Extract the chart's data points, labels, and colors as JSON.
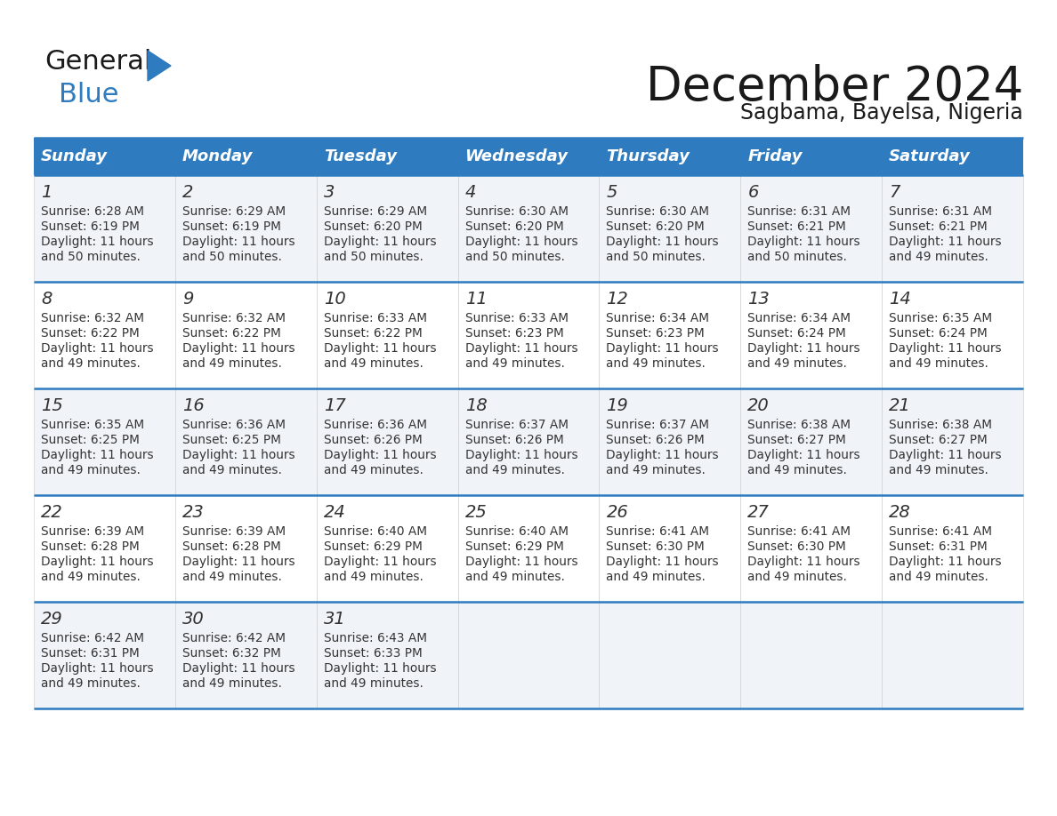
{
  "title": "December 2024",
  "subtitle": "Sagbama, Bayelsa, Nigeria",
  "header_bg": "#2E7BBF",
  "header_text_color": "#FFFFFF",
  "row_bg_odd": "#F0F4F8",
  "row_bg_even": "#FFFFFF",
  "border_color": "#2E7BBF",
  "text_color": "#333333",
  "days_of_week": [
    "Sunday",
    "Monday",
    "Tuesday",
    "Wednesday",
    "Thursday",
    "Friday",
    "Saturday"
  ],
  "weeks": [
    [
      {
        "day": 1,
        "sunrise": "6:28 AM",
        "sunset": "6:19 PM",
        "daylight": "11 hours and 50 minutes."
      },
      {
        "day": 2,
        "sunrise": "6:29 AM",
        "sunset": "6:19 PM",
        "daylight": "11 hours and 50 minutes."
      },
      {
        "day": 3,
        "sunrise": "6:29 AM",
        "sunset": "6:20 PM",
        "daylight": "11 hours and 50 minutes."
      },
      {
        "day": 4,
        "sunrise": "6:30 AM",
        "sunset": "6:20 PM",
        "daylight": "11 hours and 50 minutes."
      },
      {
        "day": 5,
        "sunrise": "6:30 AM",
        "sunset": "6:20 PM",
        "daylight": "11 hours and 50 minutes."
      },
      {
        "day": 6,
        "sunrise": "6:31 AM",
        "sunset": "6:21 PM",
        "daylight": "11 hours and 50 minutes."
      },
      {
        "day": 7,
        "sunrise": "6:31 AM",
        "sunset": "6:21 PM",
        "daylight": "11 hours and 49 minutes."
      }
    ],
    [
      {
        "day": 8,
        "sunrise": "6:32 AM",
        "sunset": "6:22 PM",
        "daylight": "11 hours and 49 minutes."
      },
      {
        "day": 9,
        "sunrise": "6:32 AM",
        "sunset": "6:22 PM",
        "daylight": "11 hours and 49 minutes."
      },
      {
        "day": 10,
        "sunrise": "6:33 AM",
        "sunset": "6:22 PM",
        "daylight": "11 hours and 49 minutes."
      },
      {
        "day": 11,
        "sunrise": "6:33 AM",
        "sunset": "6:23 PM",
        "daylight": "11 hours and 49 minutes."
      },
      {
        "day": 12,
        "sunrise": "6:34 AM",
        "sunset": "6:23 PM",
        "daylight": "11 hours and 49 minutes."
      },
      {
        "day": 13,
        "sunrise": "6:34 AM",
        "sunset": "6:24 PM",
        "daylight": "11 hours and 49 minutes."
      },
      {
        "day": 14,
        "sunrise": "6:35 AM",
        "sunset": "6:24 PM",
        "daylight": "11 hours and 49 minutes."
      }
    ],
    [
      {
        "day": 15,
        "sunrise": "6:35 AM",
        "sunset": "6:25 PM",
        "daylight": "11 hours and 49 minutes."
      },
      {
        "day": 16,
        "sunrise": "6:36 AM",
        "sunset": "6:25 PM",
        "daylight": "11 hours and 49 minutes."
      },
      {
        "day": 17,
        "sunrise": "6:36 AM",
        "sunset": "6:26 PM",
        "daylight": "11 hours and 49 minutes."
      },
      {
        "day": 18,
        "sunrise": "6:37 AM",
        "sunset": "6:26 PM",
        "daylight": "11 hours and 49 minutes."
      },
      {
        "day": 19,
        "sunrise": "6:37 AM",
        "sunset": "6:26 PM",
        "daylight": "11 hours and 49 minutes."
      },
      {
        "day": 20,
        "sunrise": "6:38 AM",
        "sunset": "6:27 PM",
        "daylight": "11 hours and 49 minutes."
      },
      {
        "day": 21,
        "sunrise": "6:38 AM",
        "sunset": "6:27 PM",
        "daylight": "11 hours and 49 minutes."
      }
    ],
    [
      {
        "day": 22,
        "sunrise": "6:39 AM",
        "sunset": "6:28 PM",
        "daylight": "11 hours and 49 minutes."
      },
      {
        "day": 23,
        "sunrise": "6:39 AM",
        "sunset": "6:28 PM",
        "daylight": "11 hours and 49 minutes."
      },
      {
        "day": 24,
        "sunrise": "6:40 AM",
        "sunset": "6:29 PM",
        "daylight": "11 hours and 49 minutes."
      },
      {
        "day": 25,
        "sunrise": "6:40 AM",
        "sunset": "6:29 PM",
        "daylight": "11 hours and 49 minutes."
      },
      {
        "day": 26,
        "sunrise": "6:41 AM",
        "sunset": "6:30 PM",
        "daylight": "11 hours and 49 minutes."
      },
      {
        "day": 27,
        "sunrise": "6:41 AM",
        "sunset": "6:30 PM",
        "daylight": "11 hours and 49 minutes."
      },
      {
        "day": 28,
        "sunrise": "6:41 AM",
        "sunset": "6:31 PM",
        "daylight": "11 hours and 49 minutes."
      }
    ],
    [
      {
        "day": 29,
        "sunrise": "6:42 AM",
        "sunset": "6:31 PM",
        "daylight": "11 hours and 49 minutes."
      },
      {
        "day": 30,
        "sunrise": "6:42 AM",
        "sunset": "6:32 PM",
        "daylight": "11 hours and 49 minutes."
      },
      {
        "day": 31,
        "sunrise": "6:43 AM",
        "sunset": "6:33 PM",
        "daylight": "11 hours and 49 minutes."
      },
      null,
      null,
      null,
      null
    ]
  ]
}
